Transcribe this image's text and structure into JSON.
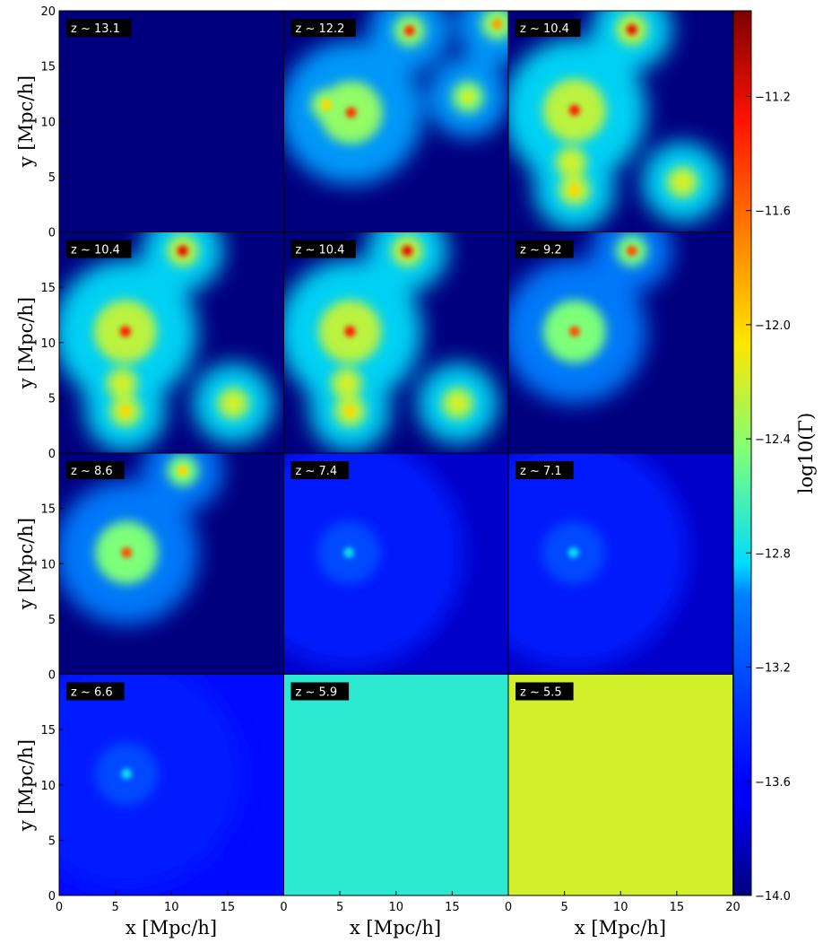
{
  "chart_data": {
    "type": "heatmap",
    "layout": "4x3 grid of panels with shared axes and a shared colorbar",
    "panels": [
      {
        "label": "z ~ 13.1",
        "background": -14.0,
        "features": []
      },
      {
        "label": "z ~ 12.2",
        "background": -14.0,
        "features": [
          {
            "kind": "halo",
            "x": 6.0,
            "y": 10.8,
            "peak": -11.4
          },
          {
            "kind": "halo",
            "x": 3.8,
            "y": 11.5,
            "peak": -12.0
          },
          {
            "kind": "halo",
            "x": 11.2,
            "y": 18.2,
            "peak": -11.4
          },
          {
            "kind": "halo",
            "x": 16.4,
            "y": 12.2,
            "peak": -12.2
          },
          {
            "kind": "halo",
            "x": 19.0,
            "y": 18.8,
            "peak": -11.8
          }
        ]
      },
      {
        "label": "z ~ 10.4",
        "background": -14.0,
        "features": [
          {
            "kind": "halo",
            "x": 5.9,
            "y": 11.0,
            "peak": -11.3
          },
          {
            "kind": "halo",
            "x": 11.0,
            "y": 18.3,
            "peak": -11.2
          },
          {
            "kind": "halo",
            "x": 5.6,
            "y": 6.3,
            "peak": -12.2
          },
          {
            "kind": "halo",
            "x": 5.9,
            "y": 3.8,
            "peak": -12.0
          },
          {
            "kind": "halo",
            "x": 15.5,
            "y": 4.5,
            "peak": -12.2
          }
        ]
      },
      {
        "label": "z ~ 10.4",
        "background": -14.0,
        "features": [
          {
            "kind": "halo",
            "x": 5.9,
            "y": 11.0,
            "peak": -11.3
          },
          {
            "kind": "halo",
            "x": 11.0,
            "y": 18.3,
            "peak": -11.2
          },
          {
            "kind": "halo",
            "x": 5.6,
            "y": 6.3,
            "peak": -12.2
          },
          {
            "kind": "halo",
            "x": 5.9,
            "y": 3.8,
            "peak": -12.0
          },
          {
            "kind": "halo",
            "x": 15.5,
            "y": 4.5,
            "peak": -12.2
          }
        ]
      },
      {
        "label": "z ~ 10.4",
        "background": -14.0,
        "features": [
          {
            "kind": "halo",
            "x": 5.9,
            "y": 11.0,
            "peak": -11.3
          },
          {
            "kind": "halo",
            "x": 11.0,
            "y": 18.3,
            "peak": -11.2
          },
          {
            "kind": "halo",
            "x": 5.6,
            "y": 6.3,
            "peak": -12.2
          },
          {
            "kind": "halo",
            "x": 5.9,
            "y": 3.8,
            "peak": -12.0
          },
          {
            "kind": "halo",
            "x": 15.5,
            "y": 4.5,
            "peak": -12.2
          }
        ]
      },
      {
        "label": "z ~ 9.2",
        "background": -14.0,
        "features": [
          {
            "kind": "halo",
            "x": 5.9,
            "y": 11.0,
            "peak": -11.5
          },
          {
            "kind": "halo",
            "x": 11.0,
            "y": 18.3,
            "peak": -11.5
          }
        ]
      },
      {
        "label": "z ~ 8.6",
        "background": -14.0,
        "features": [
          {
            "kind": "halo",
            "x": 6.0,
            "y": 11.0,
            "peak": -11.5
          },
          {
            "kind": "halo",
            "x": 11.0,
            "y": 18.4,
            "peak": -12.0
          }
        ]
      },
      {
        "label": "z ~ 7.4",
        "background": -13.8,
        "features": [
          {
            "kind": "halo",
            "x": 5.8,
            "y": 11.0,
            "peak": -12.8
          }
        ]
      },
      {
        "label": "z ~ 7.1",
        "background": -13.8,
        "features": [
          {
            "kind": "halo",
            "x": 5.8,
            "y": 11.0,
            "peak": -12.8
          }
        ]
      },
      {
        "label": "z ~ 6.6",
        "background": -13.6,
        "features": [
          {
            "kind": "halo",
            "x": 6.0,
            "y": 11.0,
            "peak": -12.8
          }
        ]
      },
      {
        "label": "z ~ 5.9",
        "background": -12.7,
        "features": []
      },
      {
        "label": "z ~ 5.5",
        "background": -12.2,
        "features": []
      }
    ],
    "x_axis": {
      "label": "x [Mpc/h]",
      "range": [
        0,
        20
      ],
      "ticks": [
        "0",
        "5",
        "10",
        "15",
        "20"
      ]
    },
    "y_axis": {
      "label": "y [Mpc/h]",
      "range": [
        0,
        20
      ],
      "ticks": [
        "0",
        "5",
        "10",
        "15",
        "20"
      ]
    },
    "colorbar": {
      "label": "log10(Γ)",
      "range": [
        -14.0,
        -10.9
      ],
      "colormap": "jet",
      "ticks": [
        "−11.2",
        "−11.6",
        "−12.0",
        "−12.4",
        "−12.8",
        "−13.2",
        "−13.6",
        "−14.0"
      ]
    }
  }
}
